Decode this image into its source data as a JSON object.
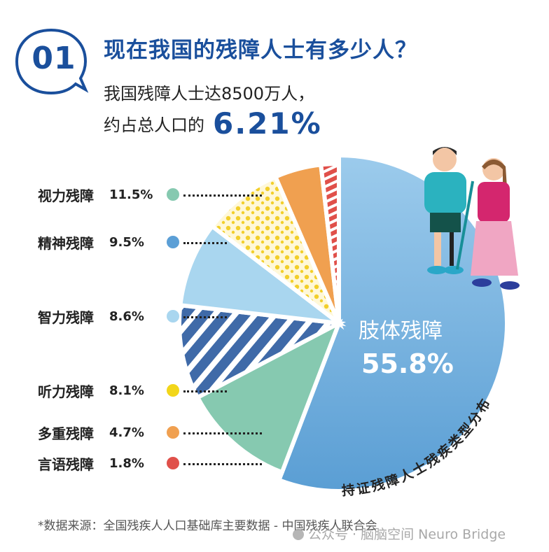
{
  "header": {
    "badge_number": "01",
    "title": "现在我国的残障人士有多少人？",
    "subtitle_line1": "我国残障人士达8500万人，",
    "subtitle_line2_prefix": "约占总人口的",
    "subtitle_line2_highlight": "6.21%"
  },
  "colors": {
    "brand_blue": "#1a4f9c",
    "limb": "#5fa3d6",
    "vision": "#86c9b0",
    "mental": "#3f6aa8",
    "intellectual": "#a9d6ef",
    "hearing": "#f2cf2a",
    "multiple": "#f0a050",
    "speech": "#e0504a"
  },
  "legend": [
    {
      "label": "视力残障",
      "value": "11.5%",
      "color": "#86c9b0"
    },
    {
      "label": "精神残障",
      "value": "9.5%",
      "color": "#5b9fd6"
    },
    {
      "label": "智力残障",
      "value": "8.6%",
      "color": "#a9d6ef"
    },
    {
      "label": "听力残障",
      "value": "8.1%",
      "color": "#f2d61a"
    },
    {
      "label": "多重残障",
      "value": "4.7%",
      "color": "#f0a050"
    },
    {
      "label": "言语残障",
      "value": "1.8%",
      "color": "#e0504a"
    }
  ],
  "center": {
    "label": "肢体残障",
    "value": "55.8%"
  },
  "arc_caption": "持证残障人士残疾类型分布",
  "footer": {
    "source": "*数据来源：全国残疾人人口基础库主要数据 - 中国残疾人联合会",
    "watermark": "公众号 · 脑脑空间 Neuro Bridge"
  },
  "chart_data": {
    "type": "pie",
    "title": "持证残障人士残疾类型分布",
    "categories": [
      "肢体残障",
      "视力残障",
      "精神残障",
      "智力残障",
      "听力残障",
      "多重残障",
      "言语残障"
    ],
    "values": [
      55.8,
      11.5,
      9.5,
      8.6,
      8.1,
      4.7,
      1.8
    ],
    "unit": "%",
    "colors": [
      "#5fa3d6",
      "#86c9b0",
      "#3f6aa8",
      "#a9d6ef",
      "#f2cf2a",
      "#f0a050",
      "#e0504a"
    ],
    "patterns": [
      "solid",
      "solid",
      "stripes",
      "solid",
      "dots",
      "solid",
      "stripes"
    ],
    "legend_position": "left",
    "start_angle_deg": 0,
    "direction": "clockwise from 12 o'clock"
  }
}
